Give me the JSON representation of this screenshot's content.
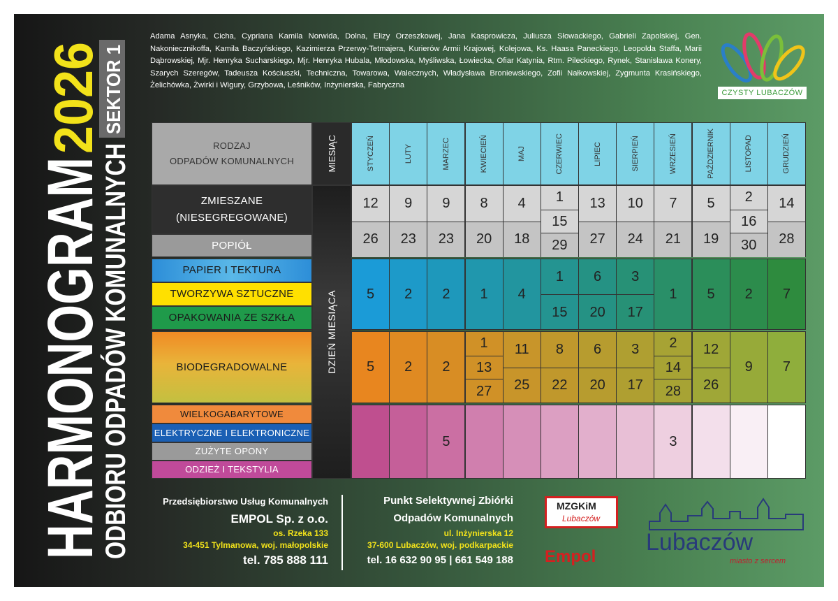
{
  "title": {
    "main": "HARMONOGRAM",
    "year": "2026",
    "subtitle": "ODBIORU ODPADÓW KOMUNALNYCH",
    "sector": "SEKTOR 1"
  },
  "streets": "Adama Asnyka, Cicha, Cypriana Kamila Norwida, Dolna, Elizy Orzeszkowej, Jana Kasprowicza, Juliusza Słowackiego, Gabrieli Zapolskiej, Gen. Nakoniecznikoffa, Kamila Baczyńskiego, Kazimierza Przerwy-Tetmajera, Kurierów Armii Krajowej, Kolejowa, Ks. Haasa Paneckiego, Leopolda Staffa, Marii Dąbrowskiej, Mjr. Henryka Sucharskiego, Mjr. Henryka Hubala, Młodowska, Myśliwska, Łowiecka, Ofiar Katynia, Rtm. Pileckiego, Rynek, Stanisława Konery, Szarych Szeregów, Tadeusza Kościuszki, Techniczna, Towarowa, Walecznych, Władysława Broniewskiego, Zofii Nałkowskiej, Zygmunta Krasińskiego, Żelichówka, Żwirki i Wigury, Grzybowa, Leśników, Inżynierska, Fabryczna",
  "logo_top": "CZYSTY LUBACZÓW",
  "table": {
    "type_header": "RODZAJ\nODPADÓW KOMUNALNYCH",
    "month_header": "MIESIĄC",
    "day_header": "DZIEŃ MIESIĄCA",
    "months": [
      "STYCZEŃ",
      "LUTY",
      "MARZEC",
      "KWIECIEŃ",
      "MAJ",
      "CZERWIEC",
      "LIPIEC",
      "SIERPIEŃ",
      "WRZESIEŃ",
      "PAŹDZIERNIK",
      "LISTOPAD",
      "GRUDZIEŃ"
    ],
    "sections": [
      {
        "labels": [
          "ZMIESZANE\n(NIESEGREGOWANE)",
          "POPIÓŁ"
        ],
        "days": [
          [
            12,
            26
          ],
          [
            9,
            23
          ],
          [
            9,
            23
          ],
          [
            8,
            20
          ],
          [
            4,
            18
          ],
          [
            1,
            15,
            29
          ],
          [
            13,
            27
          ],
          [
            10,
            24
          ],
          [
            7,
            21
          ],
          [
            5,
            19
          ],
          [
            2,
            16,
            30
          ],
          [
            14,
            28
          ]
        ]
      },
      {
        "labels": [
          "PAPIER I TEKTURA",
          "TWORZYWA SZTUCZNE",
          "OPAKOWANIA ZE SZKŁA"
        ],
        "days": [
          [
            5
          ],
          [
            2
          ],
          [
            2
          ],
          [
            1
          ],
          [
            4
          ],
          [
            1,
            15
          ],
          [
            6,
            20
          ],
          [
            3,
            17
          ],
          [
            1
          ],
          [
            5
          ],
          [
            2
          ],
          [
            7
          ]
        ]
      },
      {
        "labels": [
          "BIODEGRADOWALNE"
        ],
        "days": [
          [
            5
          ],
          [
            2
          ],
          [
            2
          ],
          [
            1,
            13,
            27
          ],
          [
            11,
            25
          ],
          [
            8,
            22
          ],
          [
            6,
            20
          ],
          [
            3,
            17
          ],
          [
            2,
            14,
            28
          ],
          [
            12,
            26
          ],
          [
            9
          ],
          [
            7
          ]
        ]
      },
      {
        "labels": [
          "WIELKOGABARYTOWE",
          "ELEKTRYCZNE I ELEKTRONICZNE",
          "ZUŻYTE OPONY",
          "ODZIEŻ I TEKSTYLIA"
        ],
        "days": [
          [],
          [],
          [
            5
          ],
          [],
          [],
          [],
          [],
          [],
          [
            3
          ],
          [],
          [],
          []
        ]
      }
    ]
  },
  "footer": {
    "company": {
      "line1": "Przedsiębiorstwo Usług Komunalnych",
      "name": "EMPOL Sp. z o.o.",
      "street": "os. Rzeka 133",
      "city": "34-451 Tylmanowa, woj. małopolskie",
      "phone": "tel. 785 888 111"
    },
    "point": {
      "line1": "Punkt Selektywnej Zbiórki",
      "line2": "Odpadów Komunalnych",
      "street": "ul. Inżynierska 12",
      "city": "37-600 Lubaczów, woj. podkarpackie",
      "phone": "tel. 16 632 90 95 | 661 549 188"
    },
    "logos": {
      "mzgkim": "MZGKiM",
      "mzgkim_city": "Lubaczów",
      "empol": "Empol",
      "city": "Lubaczów",
      "motto": "miasto z sercem"
    }
  }
}
